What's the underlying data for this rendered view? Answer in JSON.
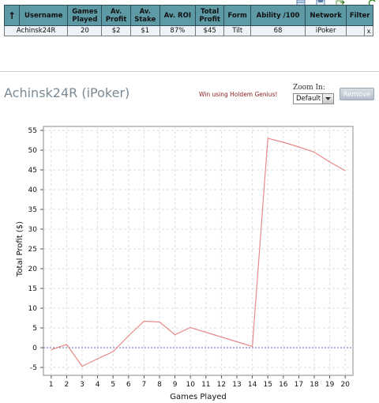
{
  "table": {
    "headers": {
      "sort": "↑",
      "username": "Username",
      "games_played": [
        "Games",
        "Played"
      ],
      "av_profit": [
        "Av.",
        "Profit"
      ],
      "av_stake": [
        "Av.",
        "Stake"
      ],
      "av_roi": "Av. ROI",
      "total_profit": [
        "Total",
        "Profit"
      ],
      "form": "Form",
      "ability": "Ability /100",
      "network": "Network",
      "filter": "Filter"
    },
    "row": {
      "username": "Achinsk24R",
      "games_played": "20",
      "av_profit": "$2",
      "av_stake": "$1",
      "av_roi": "87%",
      "total_profit": "$45",
      "form": "Tilt",
      "ability": "68",
      "network": "iPoker",
      "filter": "",
      "remove_x": "x"
    }
  },
  "player": {
    "title": "Achinsk24R (iPoker)",
    "win_link": "Win using Holdem Genius!"
  },
  "zoom": {
    "label": "Zoom In:",
    "selected": "Default"
  },
  "remove_button": "Remove",
  "icons": [
    "table-icon",
    "save-icon",
    "export-icon",
    "refresh-icon"
  ],
  "colors": {
    "header_bg": "#5e9aa6",
    "line": "#e88a8a",
    "zero_line": "#6a6ac0",
    "link_blue": "#2a4fa0",
    "link_red": "#8b1a1a"
  },
  "chart_data": {
    "type": "line",
    "xlabel": "Games Played",
    "ylabel": "Total Profit ($)",
    "x": [
      1,
      2,
      3,
      4,
      5,
      6,
      7,
      8,
      9,
      10,
      11,
      12,
      13,
      14,
      15,
      16,
      17,
      18,
      19,
      20
    ],
    "y": [
      -0.5,
      0.8,
      -4.7,
      -2.8,
      -1,
      3,
      6.7,
      6.5,
      3.3,
      5.1,
      3.9,
      2.7,
      1.5,
      0.3,
      53,
      52,
      50.8,
      49.5,
      47,
      44.8
    ],
    "xlim": [
      0.5,
      20.5
    ],
    "ylim": [
      -7,
      56
    ],
    "yticks": [
      -5,
      0,
      5,
      10,
      15,
      20,
      25,
      30,
      35,
      40,
      45,
      50,
      55
    ],
    "xticks": [
      "1",
      "2",
      "3",
      "4",
      "5",
      "6",
      "7",
      "8",
      "9",
      "10",
      "11",
      "12",
      "13",
      "14",
      "15",
      "16",
      "17",
      "18",
      "19",
      "20"
    ],
    "grid": true,
    "zero_line": true
  }
}
